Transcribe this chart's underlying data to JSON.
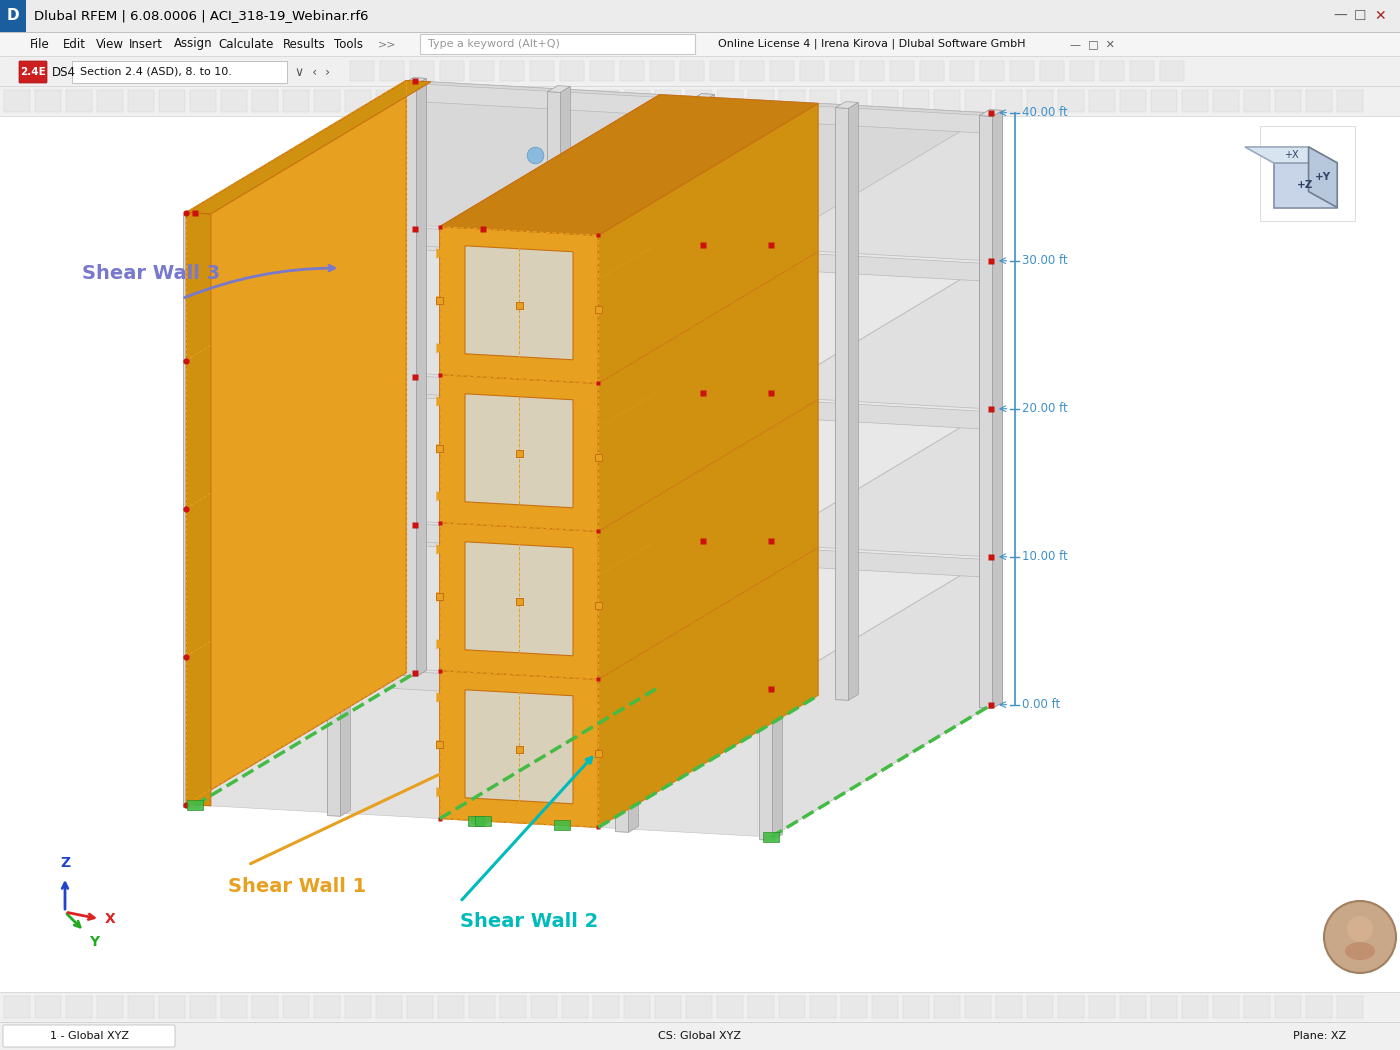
{
  "title_bar": "Dlubal RFEM | 6.08.0006 | ACI_318-19_Webinar.rf6",
  "menu_items": [
    "File",
    "Edit",
    "View",
    "Insert",
    "Assign",
    "Calculate",
    "Results",
    "Tools"
  ],
  "search_placeholder": "Type a keyword (Alt+Q)",
  "license_text": "Online License 4 | Irena Kirova | Dlubal Software GmbH",
  "ds4_label": "2.4E",
  "section_label": "DS4",
  "section_desc": "Section 2.4 (ASD), 8. to 10.",
  "shear_wall_1_label": "Shear Wall 1",
  "shear_wall_2_label": "Shear Wall 2",
  "shear_wall_3_label": "Shear Wall 3",
  "shear_wall_1_color": "#E8A020",
  "shear_wall_2_color": "#00BBBB",
  "shear_wall_3_color": "#8888CC",
  "dim_labels": [
    "0.00 ft",
    "10.00 ft",
    "20.00 ft",
    "30.00 ft",
    "40.00 ft"
  ],
  "dim_color": "#4090C8",
  "structure_gray": "#DCDCDC",
  "structure_gray_dark": "#C0C0C0",
  "structure_gray_light": "#EBEBEB",
  "floor_slab_color": "#E4E4E4",
  "floor_slab_top": "#EEEEEE",
  "col_face_color": "#D8D8D8",
  "col_side_color": "#C8C8C8",
  "orange_wall": "#E8A020",
  "orange_wall_dark": "#C87010",
  "orange_win": "#D0C090",
  "bg_color": "#FFFFFF",
  "toolbar_bg": "#F0F0F0",
  "title_bg": "#ECECEC",
  "bottom_bar_bg": "#F0F0F0",
  "axis_x_color": "#DD2222",
  "axis_y_color": "#22AA22",
  "axis_z_color": "#2244CC",
  "bottom_status_left": "1 - Global XYZ",
  "bottom_status_right": "Plane: XZ",
  "bottom_status_center": "CS: Global XYZ",
  "nav_cube_face_front": "#C8D4E8",
  "nav_cube_face_top": "#D8E4F0",
  "nav_cube_face_right": "#B8C8DC",
  "nav_cube_label_y": "+Y",
  "nav_cube_label_x": "+X",
  "red_dot_color": "#CC1111",
  "green_dash_color": "#44BB44",
  "orange_tri_color": "#E8A020",
  "orange_sq_color": "#E8A020",
  "blue_sphere_color": "#88BBDD"
}
